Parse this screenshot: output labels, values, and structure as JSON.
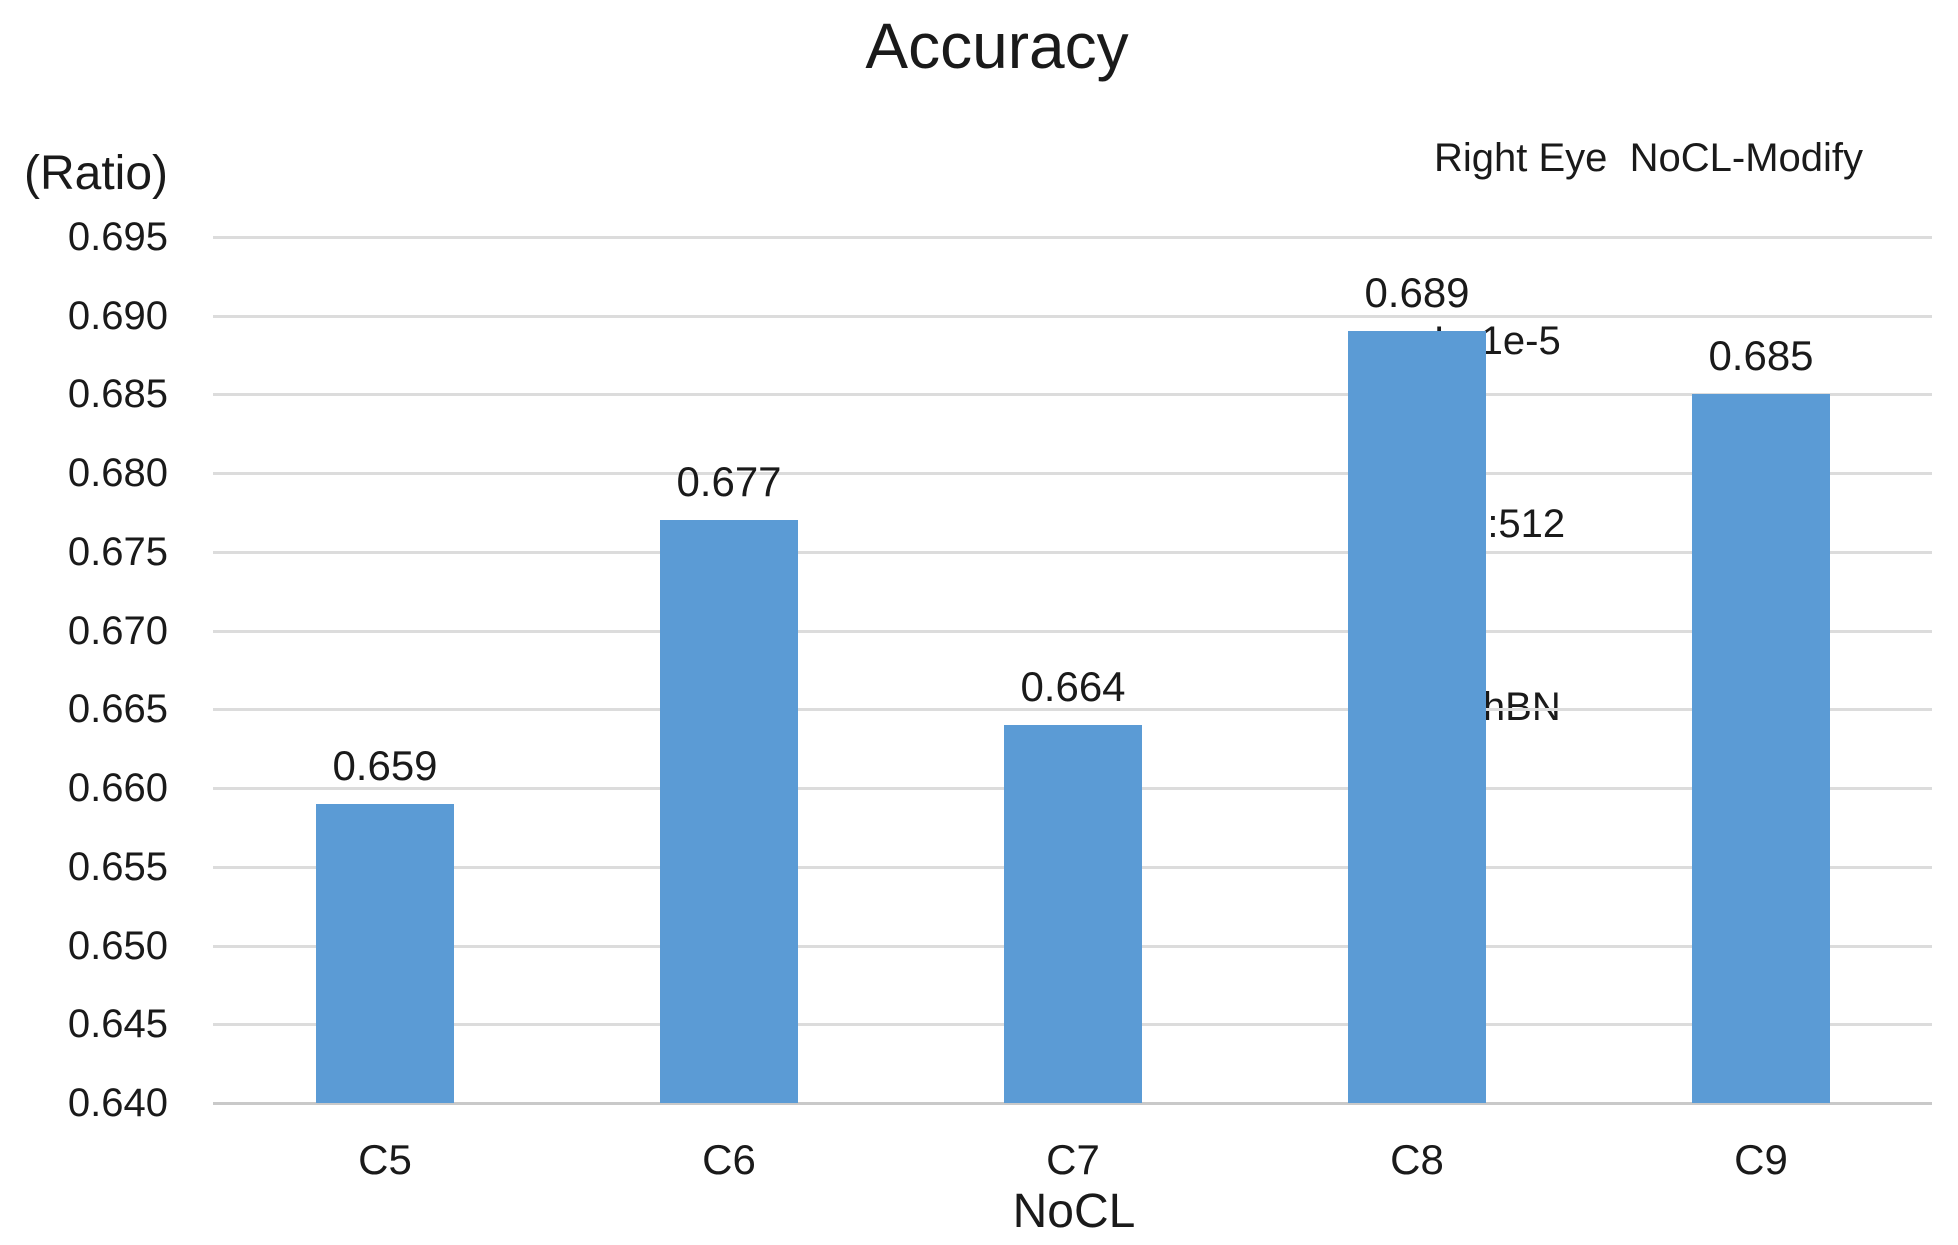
{
  "chart_data": {
    "type": "bar",
    "title": "Accuracy",
    "ylabel": "(Ratio)",
    "xlabel": "NoCL",
    "categories": [
      "C5",
      "C6",
      "C7",
      "C8",
      "C9"
    ],
    "values": [
      0.659,
      0.677,
      0.664,
      0.689,
      0.685
    ],
    "bar_labels": [
      "0.659",
      "0.677",
      "0.664",
      "0.689",
      "0.685"
    ],
    "ylim": [
      0.64,
      0.695
    ],
    "ytick_step": 0.005,
    "yticks": [
      "0.695",
      "0.690",
      "0.685",
      "0.680",
      "0.675",
      "0.670",
      "0.665",
      "0.660",
      "0.655",
      "0.650",
      "0.645",
      "0.640"
    ],
    "grid": true,
    "legend": false,
    "colors": {
      "bar": "#5B9BD5",
      "gridline": "#DCDCDC",
      "axis_line": "#C9C9C9",
      "text": "#1a1a1a"
    },
    "annotation": {
      "lines": [
        "Right Eye  NoCL-Modify",
        "Lr:1e-5",
        "FC:512",
        "withBN"
      ]
    }
  }
}
